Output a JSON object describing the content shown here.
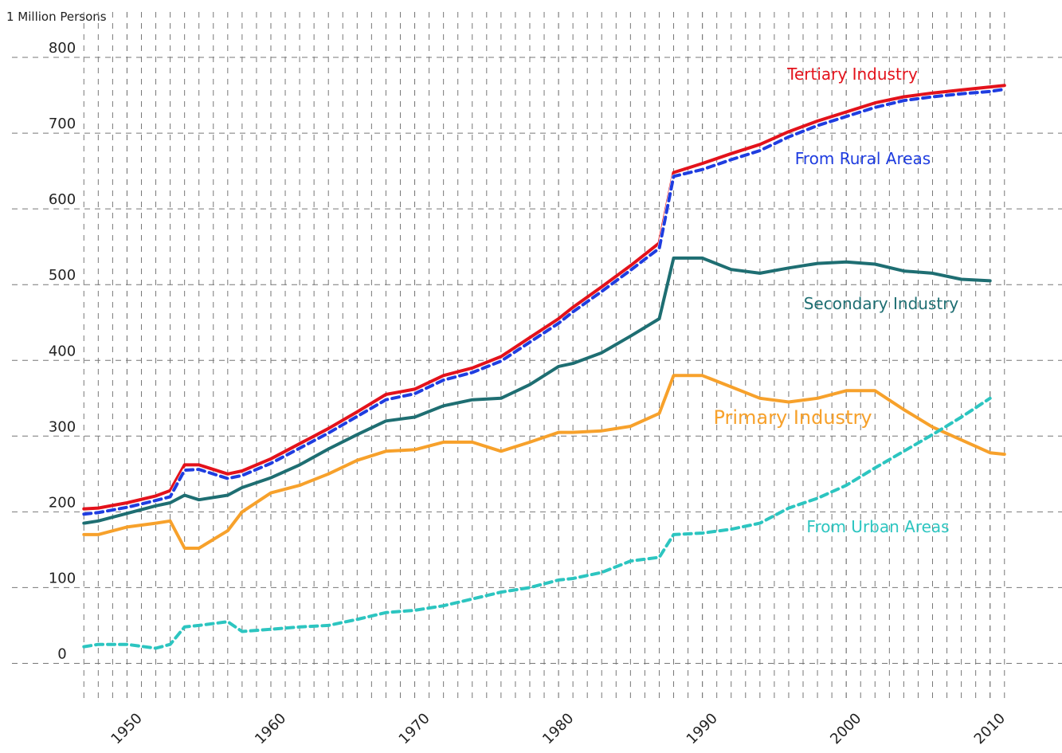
{
  "chart_data": {
    "type": "line",
    "y_label": "1 Million Persons",
    "x": [
      1947,
      1948,
      1950,
      1952,
      1953,
      1954,
      1955,
      1957,
      1958,
      1960,
      1962,
      1964,
      1966,
      1968,
      1970,
      1972,
      1974,
      1976,
      1978,
      1980,
      1981,
      1983,
      1985,
      1987,
      1988,
      1990,
      1992,
      1994,
      1996,
      1998,
      2000,
      2002,
      2004,
      2006,
      2008,
      2010,
      2011
    ],
    "series": [
      {
        "name": "Tertiary Industry",
        "color": "#e3121b",
        "dashed": false,
        "values": [
          204,
          205,
          212,
          221,
          228,
          262,
          262,
          250,
          254,
          270,
          290,
          310,
          332,
          355,
          362,
          380,
          390,
          405,
          430,
          455,
          470,
          497,
          525,
          555,
          648,
          660,
          673,
          685,
          702,
          716,
          728,
          740,
          748,
          753,
          757,
          761,
          763
        ]
      },
      {
        "name": "From Rural Areas",
        "color": "#1f3de0",
        "dashed": true,
        "values": [
          197,
          199,
          206,
          215,
          220,
          255,
          256,
          244,
          248,
          264,
          284,
          304,
          326,
          348,
          356,
          374,
          384,
          399,
          424,
          449,
          464,
          491,
          519,
          548,
          643,
          652,
          665,
          677,
          695,
          710,
          722,
          734,
          743,
          748,
          752,
          755,
          758
        ]
      },
      {
        "name": "Secondary Industry",
        "color": "#1e6e72",
        "dashed": false,
        "values": [
          185,
          188,
          198,
          208,
          212,
          222,
          216,
          222,
          232,
          245,
          262,
          283,
          302,
          320,
          325,
          340,
          348,
          350,
          368,
          392,
          396,
          410,
          432,
          455,
          535,
          535,
          520,
          515,
          522,
          528,
          530,
          527,
          518,
          515,
          507,
          505,
          null
        ]
      },
      {
        "name": "Primary Industry",
        "color": "#f7a12b",
        "dashed": false,
        "values": [
          170,
          170,
          180,
          185,
          188,
          152,
          152,
          175,
          200,
          225,
          235,
          250,
          268,
          280,
          282,
          292,
          292,
          280,
          292,
          305,
          305,
          307,
          313,
          330,
          380,
          380,
          365,
          350,
          345,
          350,
          360,
          360,
          335,
          312,
          295,
          278,
          276
        ]
      },
      {
        "name": "From Urban Areas",
        "color": "#2cc5c0",
        "dashed": true,
        "values": [
          22,
          25,
          25,
          20,
          25,
          48,
          50,
          55,
          42,
          45,
          48,
          50,
          58,
          67,
          70,
          76,
          85,
          94,
          100,
          110,
          112,
          120,
          135,
          140,
          170,
          172,
          177,
          185,
          205,
          218,
          235,
          258,
          280,
          302,
          325,
          350,
          null
        ]
      }
    ],
    "xlim": [
      1942,
      2015
    ],
    "ylim": [
      -50,
      860
    ],
    "xticks": [
      1950,
      1960,
      1970,
      1980,
      1990,
      2000,
      2010
    ],
    "yticks": [
      0,
      100,
      200,
      300,
      400,
      500,
      600,
      700,
      800
    ],
    "grid": true,
    "minor_x_grid": true
  }
}
